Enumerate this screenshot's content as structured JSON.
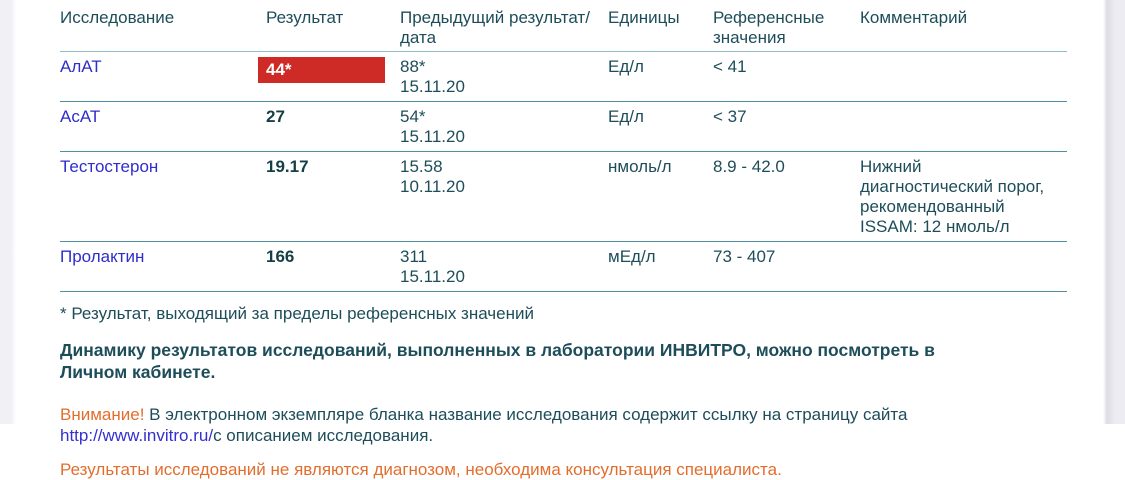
{
  "table": {
    "headers": [
      "Исследование",
      "Результат",
      "Предыдущий результат/дата",
      "Единицы",
      "Референсные значения",
      "Комментарий"
    ],
    "rows": [
      {
        "name": "АлАТ",
        "result": "44*",
        "flagged": true,
        "prev_value": "88*",
        "prev_date": "15.11.20",
        "units": "Ед/л",
        "ref": "< 41",
        "comment": ""
      },
      {
        "name": "АсАТ",
        "result": "27",
        "flagged": false,
        "prev_value": "54*",
        "prev_date": "15.11.20",
        "units": "Ед/л",
        "ref": "< 37",
        "comment": ""
      },
      {
        "name": "Тестостерон",
        "result": "19.17",
        "flagged": false,
        "prev_value": "15.58",
        "prev_date": "10.11.20",
        "units": "нмоль/л",
        "ref": "8.9 - 42.0",
        "comment": "Нижний диагностический порог, рекомендованный ISSAM: 12 нмоль/л"
      },
      {
        "name": "Пролактин",
        "result": "166",
        "flagged": false,
        "prev_value": "311",
        "prev_date": "15.11.20",
        "units": "мЕд/л",
        "ref": "73 - 407",
        "comment": ""
      }
    ]
  },
  "footer": {
    "footnote": "* Результат, выходящий за пределы референсных значений",
    "dynamics_line1": "Динамику результатов исследований, выполненных в лаборатории ИНВИТРО, можно посмотреть в",
    "dynamics_line2": "Личном кабинете.",
    "attention_label": "Внимание!",
    "attention_text": " В электронном экземпляре бланка название исследования содержит ссылку на страницу сайта",
    "link_text": "http://www.invitro.ru/",
    "link_suffix": "с описанием исследования.",
    "disclaimer": "Результаты исследований не являются диагнозом, необходима консультация специалиста."
  },
  "colors": {
    "flag_background": "#ce2a26",
    "flag_text": "#ffffff",
    "test_name_blue": "#2f2dcb",
    "link_blue": "#3330cf",
    "body_text_teal": "#1e4d5a",
    "warning_orange": "#e26e2e",
    "row_line_teal": "#4e8fa0"
  }
}
